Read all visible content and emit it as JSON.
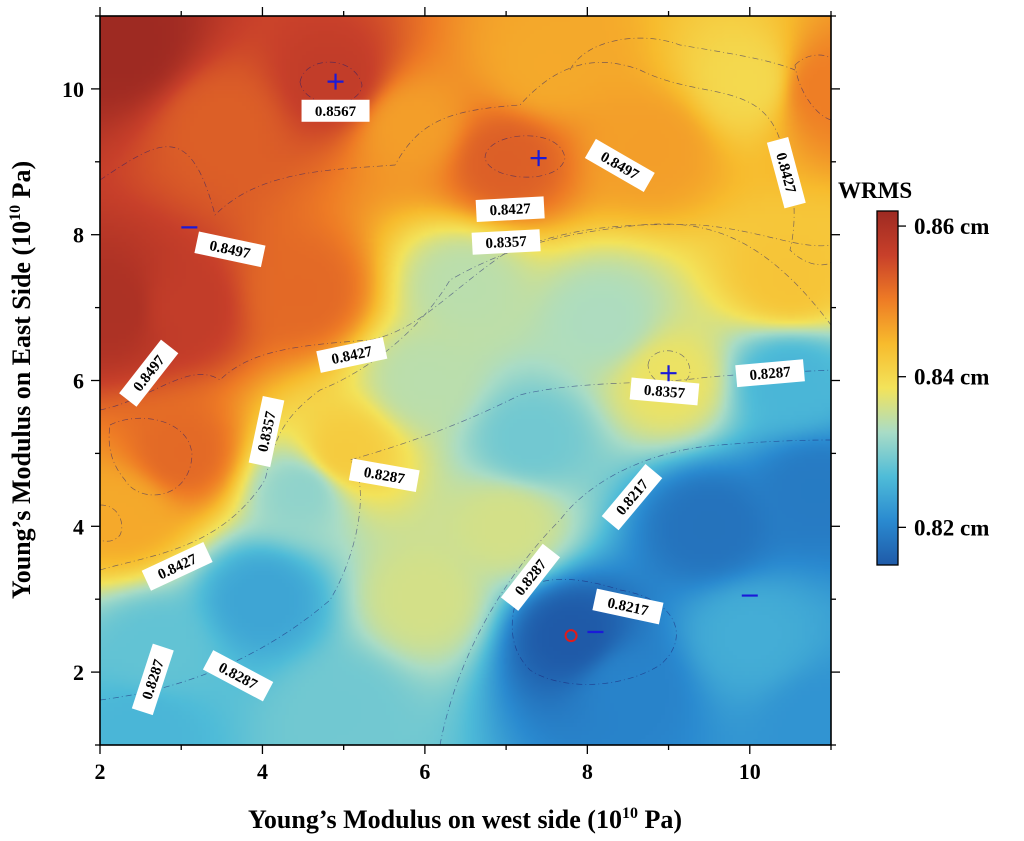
{
  "chart_data": {
    "type": "heatmap",
    "xlabel": "Young’s Modulus on west side (10",
    "xlabel_exp": "10",
    "xlabel_tail": " Pa)",
    "ylabel": "Young’s Modulus on East Side (10",
    "ylabel_exp": "10",
    "ylabel_tail": " Pa)",
    "xlim": [
      2,
      11
    ],
    "ylim": [
      1,
      11
    ],
    "xticks": [
      "2",
      "4",
      "6",
      "8",
      "10"
    ],
    "yticks": [
      "2",
      "4",
      "6",
      "8",
      "10"
    ],
    "colorbar": {
      "title": "WRMS",
      "range": [
        0.815,
        0.862
      ],
      "ticks": [
        "0.86 cm",
        "0.84 cm",
        "0.82 cm"
      ],
      "tick_values": [
        0.86,
        0.84,
        0.82
      ],
      "colors": [
        "#1f5aa8",
        "#2a8ad0",
        "#4fbcd8",
        "#a9dcc6",
        "#f3e35a",
        "#f7bb2d",
        "#ee7b25",
        "#c8402a",
        "#9e2a22"
      ]
    },
    "field_samples": [
      {
        "x": 2.3,
        "y": 10.6,
        "v": 0.862
      },
      {
        "x": 2.2,
        "y": 7.0,
        "v": 0.86
      },
      {
        "x": 3.0,
        "y": 7.0,
        "v": 0.857
      },
      {
        "x": 4.9,
        "y": 10.1,
        "v": 0.857
      },
      {
        "x": 3.5,
        "y": 9.5,
        "v": 0.853
      },
      {
        "x": 4.5,
        "y": 7.2,
        "v": 0.852
      },
      {
        "x": 3.0,
        "y": 5.0,
        "v": 0.852
      },
      {
        "x": 2.3,
        "y": 4.2,
        "v": 0.846
      },
      {
        "x": 7.0,
        "y": 9.0,
        "v": 0.853
      },
      {
        "x": 5.8,
        "y": 9.5,
        "v": 0.847
      },
      {
        "x": 8.8,
        "y": 9.2,
        "v": 0.847
      },
      {
        "x": 10.9,
        "y": 10.0,
        "v": 0.85
      },
      {
        "x": 7.5,
        "y": 10.3,
        "v": 0.846
      },
      {
        "x": 10.0,
        "y": 10.1,
        "v": 0.84
      },
      {
        "x": 10.5,
        "y": 7.4,
        "v": 0.843
      },
      {
        "x": 5.0,
        "y": 5.0,
        "v": 0.842
      },
      {
        "x": 2.7,
        "y": 2.3,
        "v": 0.828
      },
      {
        "x": 4.0,
        "y": 3.0,
        "v": 0.824
      },
      {
        "x": 6.0,
        "y": 3.0,
        "v": 0.836
      },
      {
        "x": 7.0,
        "y": 4.0,
        "v": 0.836
      },
      {
        "x": 6.0,
        "y": 6.0,
        "v": 0.834
      },
      {
        "x": 6.5,
        "y": 7.3,
        "v": 0.834
      },
      {
        "x": 9.0,
        "y": 6.0,
        "v": 0.838
      },
      {
        "x": 8.2,
        "y": 6.8,
        "v": 0.833
      },
      {
        "x": 7.8,
        "y": 2.5,
        "v": 0.815
      },
      {
        "x": 8.5,
        "y": 1.8,
        "v": 0.82
      },
      {
        "x": 9.5,
        "y": 4.0,
        "v": 0.818
      },
      {
        "x": 10.8,
        "y": 4.5,
        "v": 0.819
      },
      {
        "x": 10.0,
        "y": 2.5,
        "v": 0.825
      },
      {
        "x": 10.9,
        "y": 1.3,
        "v": 0.822
      },
      {
        "x": 5.0,
        "y": 1.5,
        "v": 0.829
      },
      {
        "x": 2.5,
        "y": 1.2,
        "v": 0.826
      },
      {
        "x": 4.5,
        "y": 4.5,
        "v": 0.831
      },
      {
        "x": 10.5,
        "y": 6.0,
        "v": 0.826
      },
      {
        "x": 7.3,
        "y": 5.2,
        "v": 0.829
      }
    ],
    "contour_labels": [
      {
        "text": "0.8567",
        "x": 4.9,
        "y": 9.7,
        "angle": 0
      },
      {
        "text": "0.8497",
        "x": 8.4,
        "y": 8.95,
        "angle": 30
      },
      {
        "text": "0.8427",
        "x": 10.45,
        "y": 8.85,
        "angle": 75
      },
      {
        "text": "0.8427",
        "x": 7.05,
        "y": 8.35,
        "angle": -3
      },
      {
        "text": "0.8357",
        "x": 7.0,
        "y": 7.9,
        "angle": -3
      },
      {
        "text": "0.8497",
        "x": 3.6,
        "y": 7.8,
        "angle": 12
      },
      {
        "text": "0.8427",
        "x": 5.1,
        "y": 6.35,
        "angle": -12
      },
      {
        "text": "0.8497",
        "x": 2.6,
        "y": 6.1,
        "angle": -52
      },
      {
        "text": "0.8357",
        "x": 8.95,
        "y": 5.85,
        "angle": 5
      },
      {
        "text": "0.8287",
        "x": 10.25,
        "y": 6.1,
        "angle": -5
      },
      {
        "text": "0.8357",
        "x": 4.05,
        "y": 5.3,
        "angle": -78
      },
      {
        "text": "0.8287",
        "x": 5.5,
        "y": 4.7,
        "angle": 10
      },
      {
        "text": "0.8217",
        "x": 8.55,
        "y": 4.4,
        "angle": -50
      },
      {
        "text": "0.8427",
        "x": 2.95,
        "y": 3.45,
        "angle": -25
      },
      {
        "text": "0.8287",
        "x": 7.3,
        "y": 3.3,
        "angle": -52
      },
      {
        "text": "0.8217",
        "x": 8.5,
        "y": 2.9,
        "angle": 12
      },
      {
        "text": "0.8287",
        "x": 3.7,
        "y": 1.95,
        "angle": 28
      },
      {
        "text": "0.8287",
        "x": 2.65,
        "y": 1.9,
        "angle": -72
      }
    ],
    "markers": [
      {
        "kind": "plus",
        "x": 4.9,
        "y": 10.1
      },
      {
        "kind": "plus",
        "x": 7.4,
        "y": 9.05
      },
      {
        "kind": "plus",
        "x": 9.0,
        "y": 6.1
      },
      {
        "kind": "minus",
        "x": 3.1,
        "y": 8.1
      },
      {
        "kind": "minus",
        "x": 8.1,
        "y": 2.55
      },
      {
        "kind": "minus",
        "x": 10.0,
        "y": 3.05
      },
      {
        "kind": "circle",
        "x": 7.8,
        "y": 2.5
      }
    ],
    "marker_colors": {
      "plus": "#1a1ad8",
      "minus": "#1a1ad8",
      "circle": "#e01b1b"
    }
  }
}
